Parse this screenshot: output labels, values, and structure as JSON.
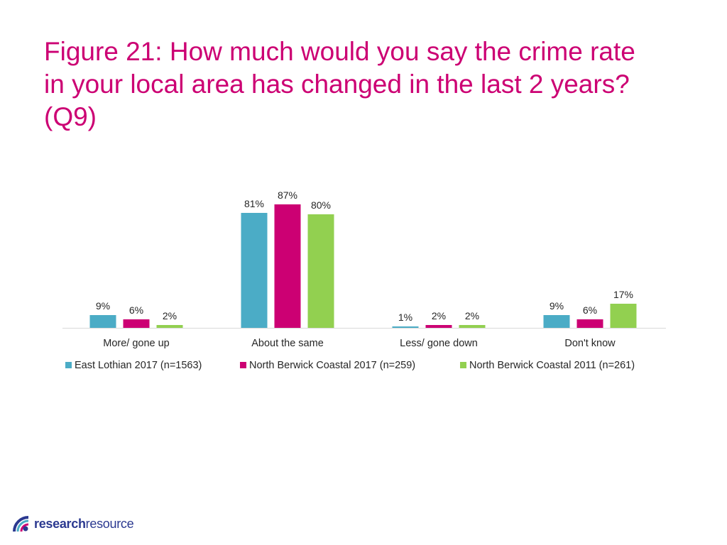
{
  "title": "Figure 21: How much would you say the crime rate\nin your local area has changed in the last 2 years?\n(Q9)",
  "chart_data": {
    "type": "bar",
    "categories": [
      "More/ gone up",
      "About the same",
      "Less/ gone down",
      "Don't know"
    ],
    "series": [
      {
        "name": "East Lothian 2017 (n=1563)",
        "color": "#4bacc6",
        "values": [
          9,
          81,
          1,
          9
        ]
      },
      {
        "name": "North Berwick Coastal 2017 (n=259)",
        "color": "#cc0073",
        "values": [
          6,
          87,
          2,
          6
        ]
      },
      {
        "name": "North Berwick Coastal 2011 (n=261)",
        "color": "#92d050",
        "values": [
          2,
          80,
          2,
          17
        ]
      }
    ],
    "value_suffix": "%",
    "ylim": [
      0,
      100
    ],
    "grid": false,
    "legend_position": "bottom"
  },
  "logo": {
    "bold": "research",
    "regular": "resource",
    "icon": "logo-arc-icon"
  }
}
